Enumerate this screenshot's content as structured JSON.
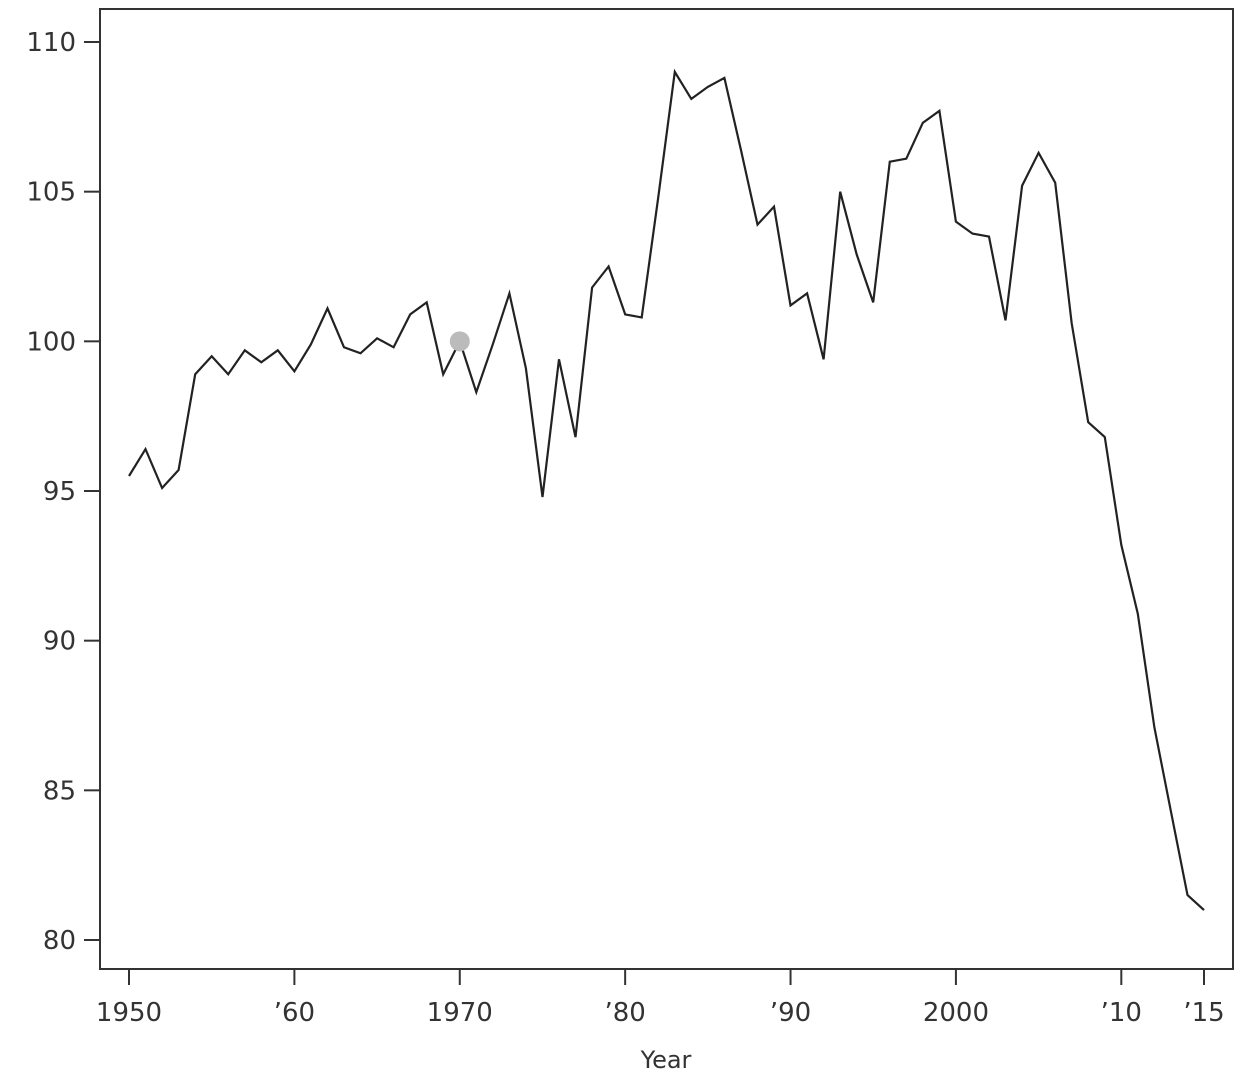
{
  "chart_data": {
    "type": "line",
    "title": "",
    "xlabel": "Year",
    "ylabel": "",
    "xlim": [
      1950,
      2015
    ],
    "ylim": [
      80,
      110
    ],
    "grid": false,
    "line_color": "#222222",
    "marker_color": "#bbbbbb",
    "highlight": {
      "x": 1970,
      "y": 100
    },
    "x_ticks": [
      {
        "value": 1950,
        "label": "1950"
      },
      {
        "value": 1960,
        "label": "’60"
      },
      {
        "value": 1970,
        "label": "1970"
      },
      {
        "value": 1980,
        "label": "’80"
      },
      {
        "value": 1990,
        "label": "’90"
      },
      {
        "value": 2000,
        "label": "2000"
      },
      {
        "value": 2010,
        "label": "’10"
      },
      {
        "value": 2015,
        "label": "’15"
      }
    ],
    "y_ticks": [
      {
        "value": 80,
        "label": "80"
      },
      {
        "value": 85,
        "label": "85"
      },
      {
        "value": 90,
        "label": "90"
      },
      {
        "value": 95,
        "label": "95"
      },
      {
        "value": 100,
        "label": "100"
      },
      {
        "value": 105,
        "label": "105"
      },
      {
        "value": 110,
        "label": "110"
      }
    ],
    "series": [
      {
        "x": [
          1950,
          1951,
          1952,
          1953,
          1954,
          1955,
          1956,
          1957,
          1958,
          1959,
          1960,
          1961,
          1962,
          1963,
          1964,
          1965,
          1966,
          1967,
          1968,
          1969,
          1970,
          1971,
          1972,
          1973,
          1974,
          1975,
          1976,
          1977,
          1978,
          1979,
          1980,
          1981,
          1982,
          1983,
          1984,
          1985,
          1986,
          1987,
          1988,
          1989,
          1990,
          1991,
          1992,
          1993,
          1994,
          1995,
          1996,
          1997,
          1998,
          1999,
          2000,
          2001,
          2002,
          2003,
          2004,
          2005,
          2006,
          2007,
          2008,
          2009,
          2010,
          2011,
          2012,
          2013,
          2014,
          2015
        ],
        "values": [
          95.5,
          96.4,
          95.1,
          95.7,
          98.9,
          99.5,
          98.9,
          99.7,
          99.3,
          99.7,
          99.0,
          99.9,
          101.1,
          99.8,
          99.6,
          100.1,
          99.8,
          100.9,
          101.3,
          98.9,
          100.0,
          98.3,
          99.9,
          101.6,
          99.1,
          94.8,
          99.4,
          96.8,
          101.8,
          102.5,
          100.9,
          100.8,
          104.8,
          109.0,
          108.1,
          108.5,
          108.8,
          106.4,
          103.9,
          104.5,
          101.2,
          101.6,
          99.4,
          105.0,
          102.9,
          101.3,
          106.0,
          106.1,
          107.3,
          107.7,
          104.0,
          103.6,
          103.5,
          100.7,
          105.2,
          106.3,
          105.3,
          100.6,
          97.3,
          96.8,
          93.2,
          90.9,
          87.1,
          84.3,
          81.5,
          81.0
        ]
      }
    ]
  }
}
